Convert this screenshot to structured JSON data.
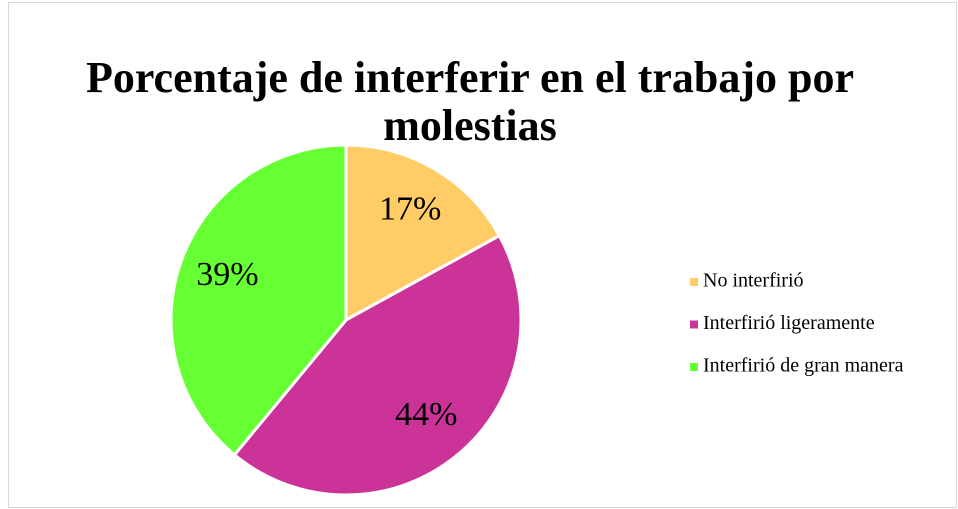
{
  "chart_data": {
    "type": "pie",
    "title": "Porcentaje de interferir en el trabajo por molestias",
    "categories": [
      "No interfirió",
      "Interfirió ligeramente",
      "Interfirió de gran manera"
    ],
    "values": [
      17,
      44,
      39
    ],
    "value_labels": [
      "17%",
      "44%",
      "39%"
    ],
    "colors": [
      "#ffcc66",
      "#cc3399",
      "#66ff33"
    ],
    "legend": "right"
  }
}
